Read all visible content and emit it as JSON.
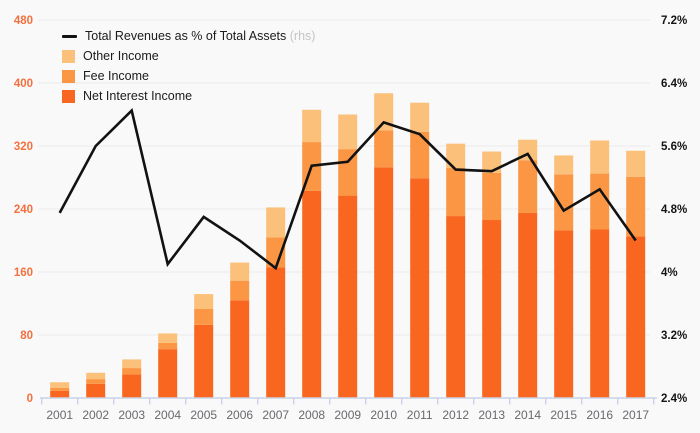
{
  "chart_data": {
    "type": "bar",
    "subtype": "stacked-columns-with-line-overlay",
    "title": "",
    "grid": true,
    "legend_position": "top-left",
    "categories": [
      "2001",
      "2002",
      "2003",
      "2004",
      "2005",
      "2006",
      "2007",
      "2008",
      "2009",
      "2010",
      "2011",
      "2012",
      "2013",
      "2014",
      "2015",
      "2016",
      "2017"
    ],
    "series": [
      {
        "name": "Net Interest Income",
        "type": "bar",
        "stack_order": 1,
        "color": "#f9661f",
        "values": [
          9,
          18,
          30,
          62,
          93,
          124,
          166,
          263,
          257,
          293,
          279,
          231,
          226,
          235,
          213,
          214,
          205
        ]
      },
      {
        "name": "Fee Income",
        "type": "bar",
        "stack_order": 2,
        "color": "#fa9644",
        "values": [
          4,
          6,
          8,
          8,
          20,
          25,
          38,
          62,
          59,
          47,
          59,
          61,
          60,
          67,
          71,
          71,
          76
        ]
      },
      {
        "name": "Other Income",
        "type": "bar",
        "stack_order": 3,
        "color": "#fbc17b",
        "values": [
          7,
          8,
          11,
          12,
          19,
          23,
          38,
          41,
          44,
          47,
          37,
          31,
          27,
          26,
          24,
          42,
          33
        ]
      },
      {
        "name": "Total Revenues as % of Total Assets",
        "type": "line",
        "axis": "right",
        "color": "#121212",
        "values": [
          4.75,
          5.6,
          6.05,
          4.1,
          4.7,
          4.4,
          4.05,
          5.35,
          5.4,
          5.9,
          5.75,
          5.3,
          5.28,
          5.5,
          4.78,
          5.05,
          4.4
        ]
      }
    ],
    "left_axis": {
      "range": [
        0,
        480
      ],
      "ticks": [
        0,
        80,
        160,
        240,
        320,
        400,
        480
      ],
      "label_color": "#f4703f"
    },
    "right_axis": {
      "range": [
        2.4,
        7.2
      ],
      "ticks": [
        {
          "value": 2.4,
          "label": "2.4%"
        },
        {
          "value": 3.2,
          "label": "3.2%"
        },
        {
          "value": 4.0,
          "label": "4%"
        },
        {
          "value": 4.8,
          "label": "4.8%"
        },
        {
          "value": 5.6,
          "label": "5.6%"
        },
        {
          "value": 6.4,
          "label": "6.4%"
        },
        {
          "value": 7.2,
          "label": "7.2%"
        }
      ],
      "label_color": "#141414"
    },
    "legend": [
      {
        "label": "Total Revenues as % of Total Assets",
        "suffix": " (rhs)",
        "marker": "line",
        "color": "#121212"
      },
      {
        "label": "Other Income",
        "suffix": "",
        "marker": "square",
        "color": "#fbc17b"
      },
      {
        "label": "Fee Income",
        "suffix": "",
        "marker": "square",
        "color": "#fa9644"
      },
      {
        "label": "Net Interest Income",
        "suffix": "",
        "marker": "square",
        "color": "#f9661f"
      }
    ]
  },
  "colors": {
    "background": "#f9f9f9",
    "gridline": "#eaeaea",
    "axis_line": "#c9d2e8",
    "x_label": "#69696f",
    "left_axis_label": "#f4703f",
    "right_axis_label": "#141414",
    "line_series": "#121212",
    "net_interest_income": "#f9661f",
    "fee_income": "#fa9644",
    "other_income": "#fbc17b"
  }
}
